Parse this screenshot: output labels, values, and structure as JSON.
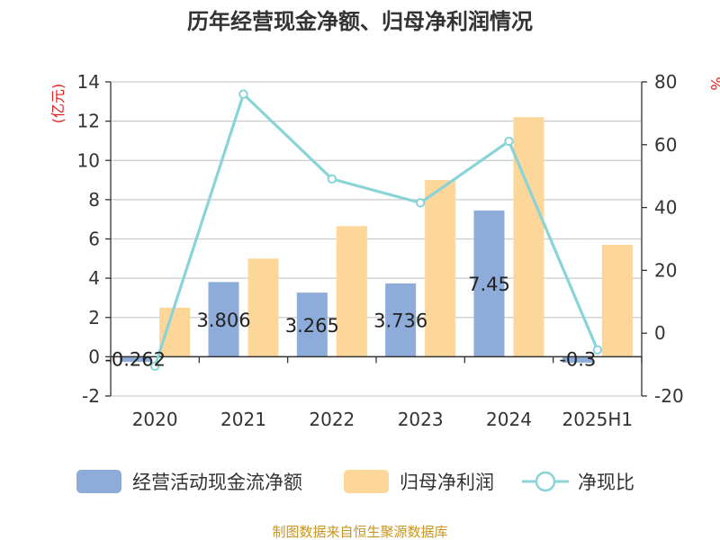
{
  "chart_data": {
    "type": "bar",
    "title": "历年经营现金净额、归母净利润情况",
    "categories": [
      "2020",
      "2021",
      "2022",
      "2023",
      "2024",
      "2025H1"
    ],
    "series": [
      {
        "name": "经营活动现金流净额",
        "type": "bar",
        "axis": "left",
        "color": "#8EACDA",
        "values": [
          -0.262,
          3.806,
          3.265,
          3.736,
          7.45,
          -0.3
        ],
        "labels": [
          "-0.262",
          "3.806",
          "3.265",
          "3.736",
          "7.45",
          "-0.3"
        ]
      },
      {
        "name": "归母净利润",
        "type": "bar",
        "axis": "left",
        "color": "#FDD69A",
        "values": [
          2.5,
          5.0,
          6.65,
          9.0,
          12.2,
          5.7
        ]
      },
      {
        "name": "净现比",
        "type": "line",
        "axis": "right",
        "color": "#8AD4D8",
        "values": [
          -10.5,
          76.1,
          49.1,
          41.5,
          61.1,
          -5.3
        ]
      }
    ],
    "y_left": {
      "unit": "(亿元)",
      "ylim": [
        -2,
        14
      ],
      "ticks": [
        "-2",
        "0",
        "2",
        "4",
        "6",
        "8",
        "10",
        "12",
        "14"
      ]
    },
    "y_right": {
      "unit": "%",
      "ylim": [
        -20,
        80
      ],
      "ticks": [
        "-20",
        "0",
        "20",
        "40",
        "60",
        "80"
      ]
    },
    "grid": true,
    "legend_position": "bottom",
    "source": "制图数据来自恒生聚源数据库",
    "colors": {
      "unit_label": "#E02020",
      "source_text": "#C8961E",
      "axis": "#333333",
      "grid": "#CCCCCC"
    }
  }
}
